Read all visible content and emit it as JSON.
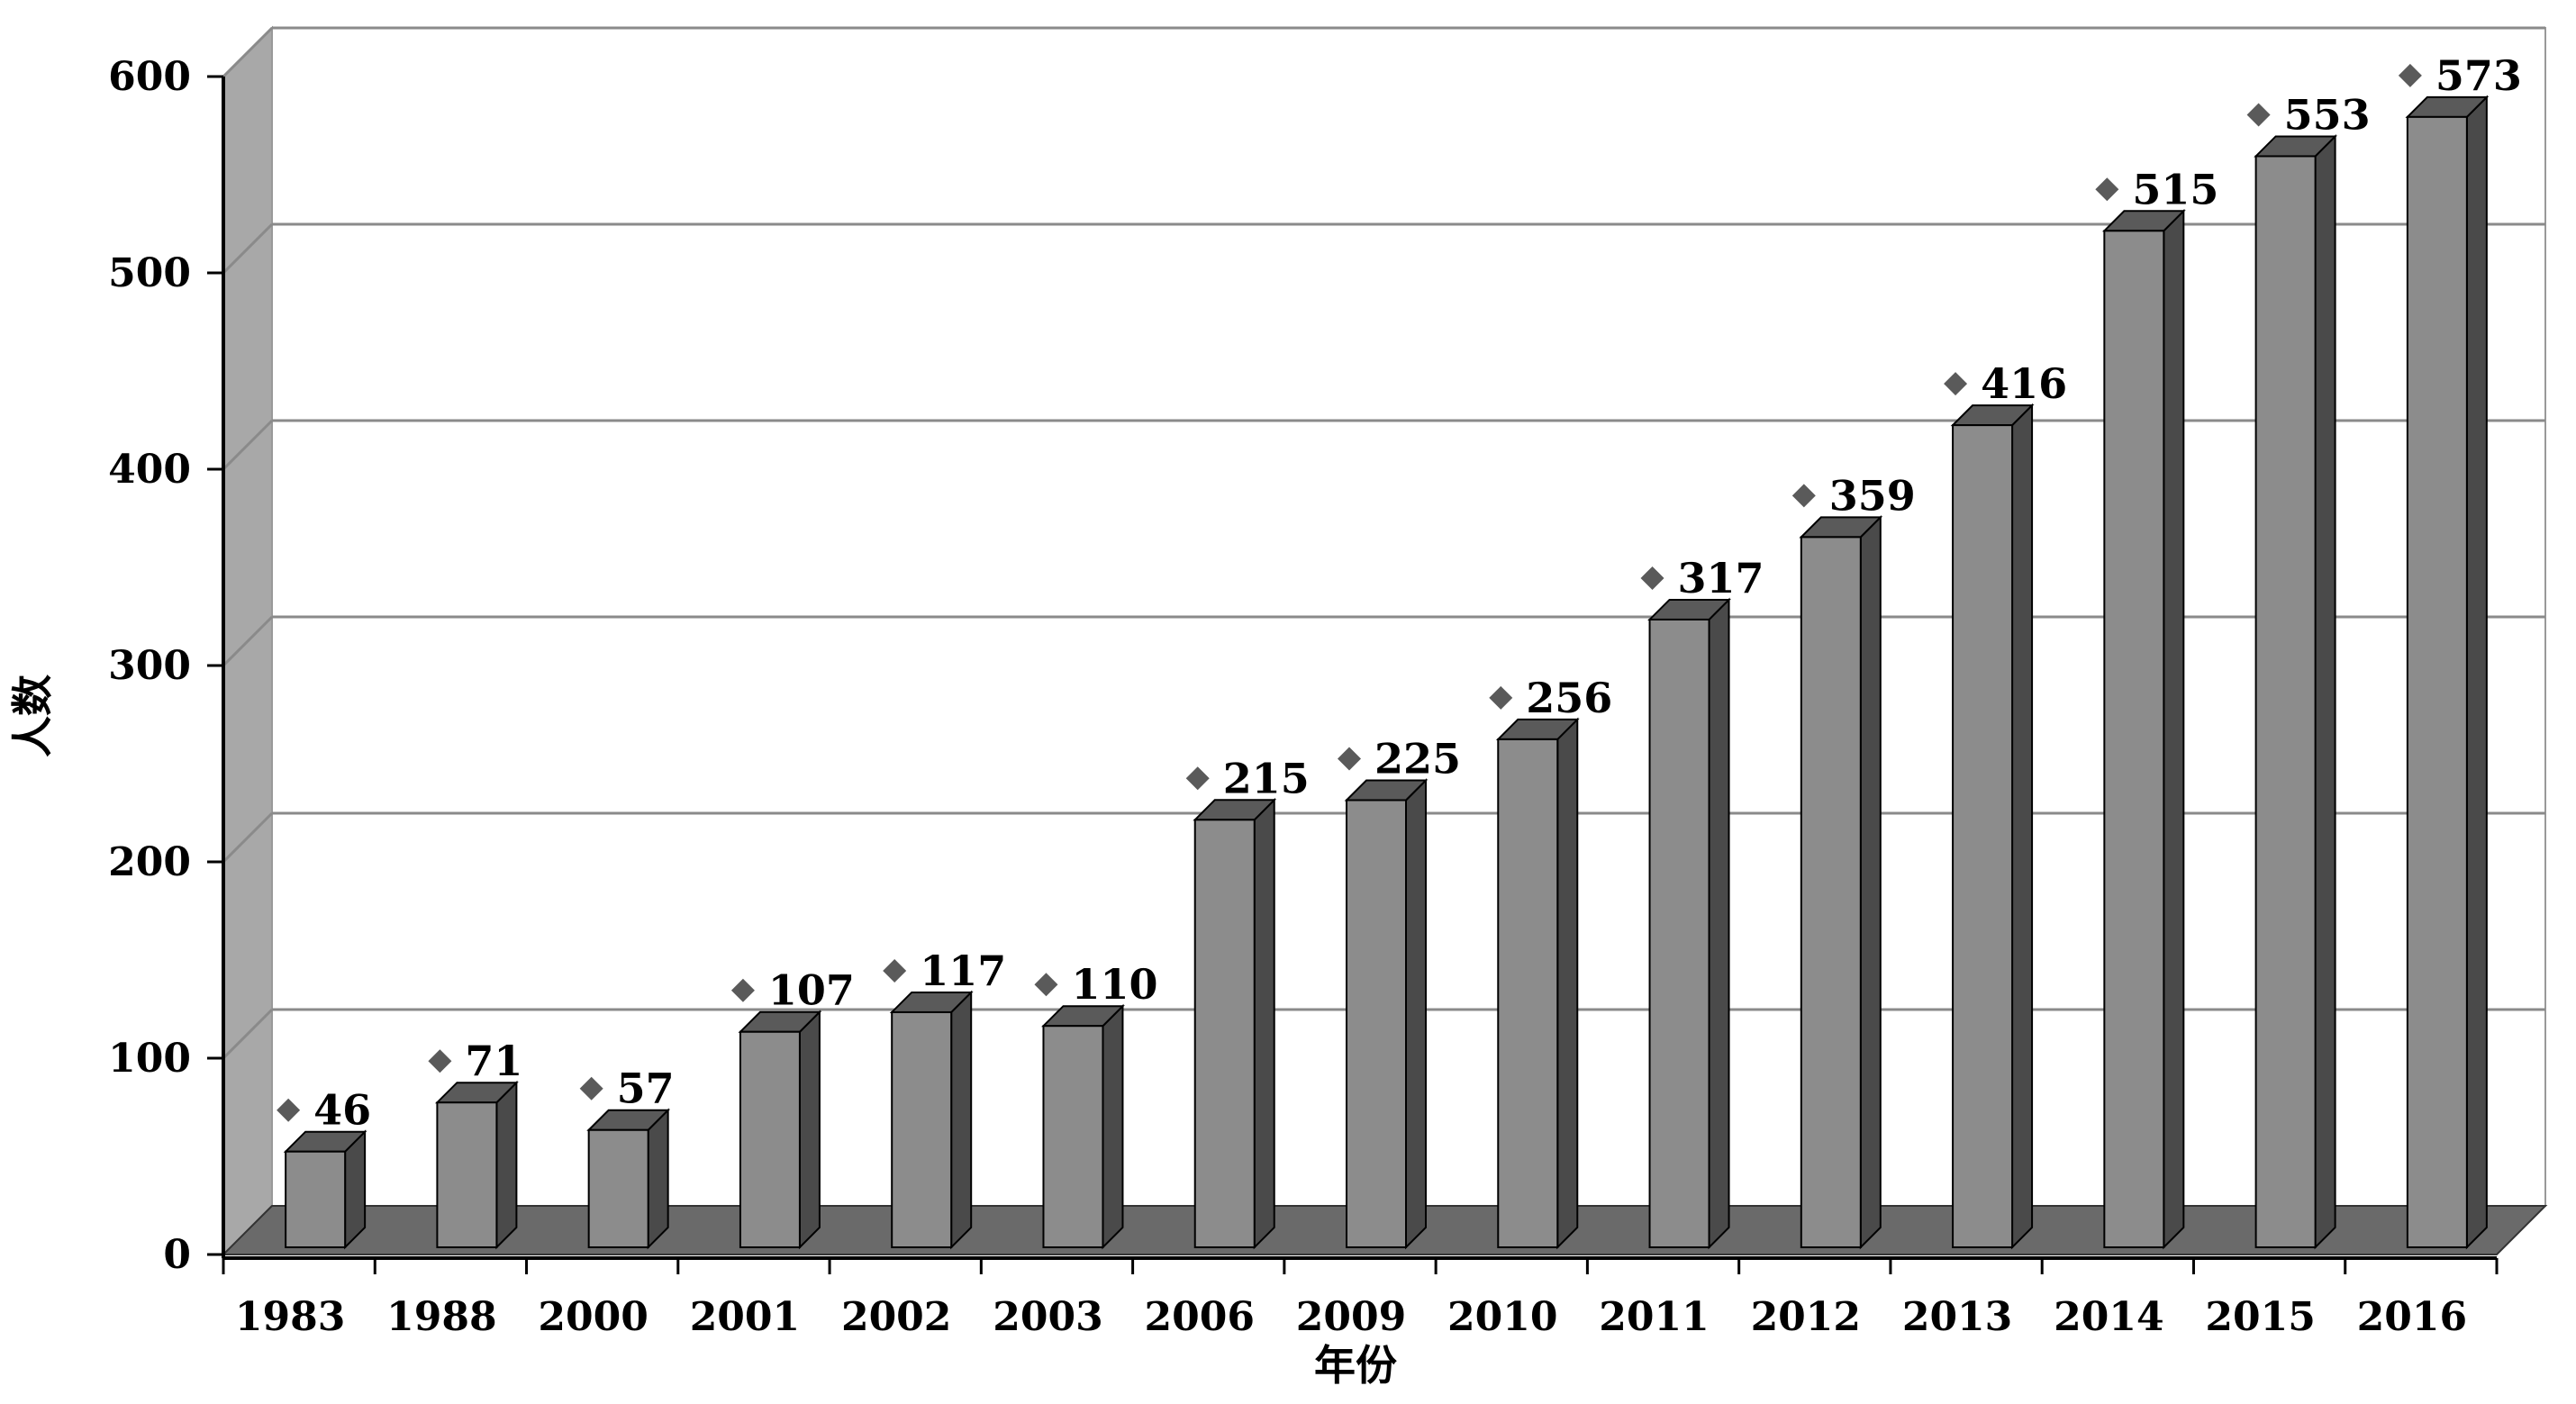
{
  "chart_data": {
    "type": "bar",
    "style": "3d-column",
    "categories": [
      "1983",
      "1988",
      "2000",
      "2001",
      "2002",
      "2003",
      "2006",
      "2009",
      "2010",
      "2011",
      "2012",
      "2013",
      "2014",
      "2015",
      "2016"
    ],
    "values": [
      46,
      71,
      57,
      107,
      117,
      110,
      215,
      225,
      256,
      317,
      359,
      416,
      515,
      553,
      573
    ],
    "data_labels": [
      "46",
      "71",
      "57",
      "107",
      "117",
      "110",
      "215",
      "225",
      "256",
      "317",
      "359",
      "416",
      "515",
      "553",
      "573"
    ],
    "xlabel": "年份",
    "ylabel": "人数",
    "ylim": [
      0,
      600
    ],
    "yticks": [
      "0",
      "100",
      "200",
      "300",
      "400",
      "500",
      "600"
    ],
    "grid": true,
    "legend": "none",
    "colors": {
      "bar_front": "#8c8c8c",
      "bar_side": "#4a4a4a",
      "bar_top": "#5a5a5a",
      "floor": "#6a6a6a",
      "back_wall": "#ffffff",
      "left_wall": "#a8a8a8",
      "gridline": "#8a8a8a",
      "marker": "#5a5a5a"
    }
  }
}
